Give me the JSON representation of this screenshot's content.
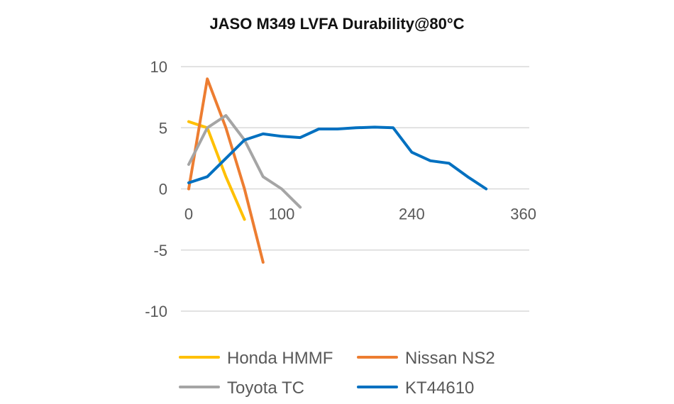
{
  "chart_data": {
    "type": "line",
    "title": "JASO M349 LVFA Durability@80°C",
    "xlabel": "",
    "ylabel": "",
    "xlim": [
      0,
      360
    ],
    "ylim": [
      -10,
      10
    ],
    "x_ticks": [
      0,
      100,
      240,
      360
    ],
    "y_ticks": [
      10,
      5,
      0,
      -5,
      -10
    ],
    "grid": true,
    "legend_position": "bottom",
    "series": [
      {
        "name": "Honda HMMF",
        "color": "#FFC000",
        "x": [
          0,
          20,
          40,
          60
        ],
        "y": [
          5.5,
          5.0,
          1.0,
          -2.5
        ]
      },
      {
        "name": "Nissan NS2",
        "color": "#ED7D31",
        "x": [
          0,
          20,
          40,
          60,
          80
        ],
        "y": [
          0,
          9.0,
          5.0,
          0,
          -6.0
        ]
      },
      {
        "name": "Toyota TC",
        "color": "#A5A5A5",
        "x": [
          0,
          20,
          40,
          60,
          80,
          100,
          120
        ],
        "y": [
          2.0,
          5.0,
          6.0,
          4.0,
          1.0,
          0,
          -1.5
        ]
      },
      {
        "name": "KT44610",
        "color": "#0070C0",
        "x": [
          0,
          20,
          40,
          60,
          80,
          100,
          120,
          140,
          160,
          180,
          200,
          220,
          240,
          260,
          280,
          300,
          320
        ],
        "y": [
          0.5,
          1.0,
          2.5,
          4.0,
          4.5,
          4.3,
          4.2,
          4.9,
          4.9,
          5.0,
          5.05,
          5.0,
          3.0,
          2.3,
          2.1,
          1.0,
          0
        ]
      }
    ]
  }
}
